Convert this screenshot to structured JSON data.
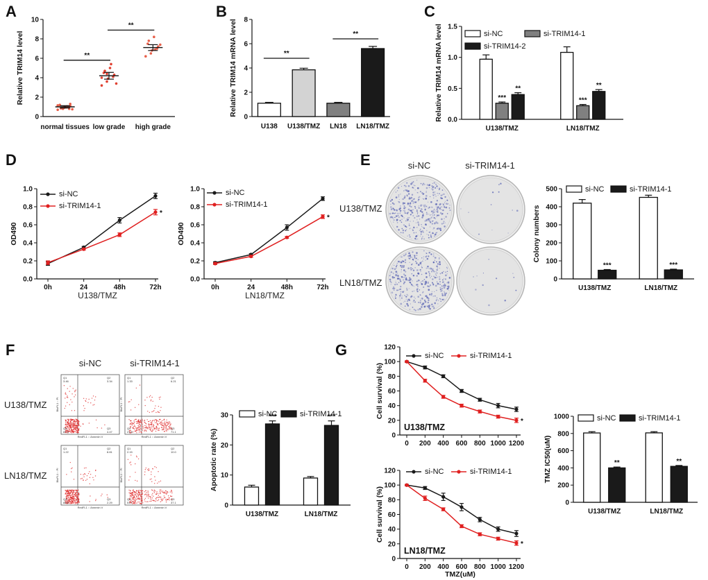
{
  "colors": {
    "black": "#1a1a1a",
    "red": "#e02020",
    "gray": "#808080",
    "lightgray": "#d3d3d3",
    "white": "#ffffff",
    "plateBlue": "#5a64b4",
    "dots": "#e8604a",
    "dotsLow": "#e04030"
  },
  "chart_data": [
    {
      "id": "A",
      "type": "scatter",
      "panel_label": "A",
      "ylabel": "Relative TRIM14 level",
      "ylim": [
        0,
        10
      ],
      "yticks": [
        0,
        2,
        4,
        6,
        8,
        10
      ],
      "categories": [
        "normal tissues",
        "low grade",
        "high grade"
      ],
      "points": [
        [
          0.7,
          0.8,
          0.9,
          1.0,
          1.1,
          1.2,
          0.85,
          0.95,
          1.05,
          0.75,
          1.15,
          0.9,
          1.0,
          0.8,
          1.3
        ],
        [
          3.2,
          3.6,
          3.9,
          4.1,
          4.3,
          4.5,
          4.7,
          5.0,
          5.4,
          3.4,
          4.0,
          4.4
        ],
        [
          6.2,
          6.5,
          6.8,
          7.0,
          7.2,
          7.5,
          7.8,
          8.2,
          6.9,
          7.4
        ]
      ],
      "means": [
        1.0,
        4.2,
        7.1
      ],
      "errors": [
        0.12,
        0.35,
        0.3
      ],
      "annotations": [
        {
          "from": 0,
          "to": 1,
          "y": 5.8,
          "text": "**"
        },
        {
          "from": 1,
          "to": 2,
          "y": 8.9,
          "text": "**"
        }
      ]
    },
    {
      "id": "B",
      "type": "bar",
      "panel_label": "B",
      "ylabel": "Relative TRIM14 mRNA level",
      "ylim": [
        0,
        8
      ],
      "yticks": [
        0,
        2,
        4,
        6,
        8
      ],
      "categories": [
        "U138",
        "U138/TMZ",
        "LN18",
        "LN18/TMZ"
      ],
      "values": [
        1.1,
        3.85,
        1.1,
        5.6
      ],
      "errors": [
        0.07,
        0.13,
        0.07,
        0.18
      ],
      "bar_colors": [
        "#ffffff",
        "#d3d3d3",
        "#808080",
        "#1a1a1a"
      ],
      "annotations": [
        {
          "from": 0,
          "to": 1,
          "y": 4.8,
          "text": "**"
        },
        {
          "from": 2,
          "to": 3,
          "y": 6.4,
          "text": "**"
        }
      ]
    },
    {
      "id": "C",
      "type": "bar",
      "panel_label": "C",
      "ylabel": "Relative TRIM14 mRNA level",
      "ylim": [
        0,
        1.5
      ],
      "yticks": [
        0.0,
        0.5,
        1.0,
        1.5
      ],
      "categories": [
        "U138/TMZ",
        "LN18/TMZ"
      ],
      "series": [
        {
          "name": "si-NC",
          "color": "#ffffff",
          "values": [
            0.97,
            1.08
          ],
          "errors": [
            0.07,
            0.09
          ],
          "labels": [
            "",
            ""
          ]
        },
        {
          "name": "si-TRIM14-1",
          "color": "#808080",
          "values": [
            0.26,
            0.22
          ],
          "errors": [
            0.02,
            0.02
          ],
          "labels": [
            "***",
            "***"
          ]
        },
        {
          "name": "si-TRIM14-2",
          "color": "#1a1a1a",
          "values": [
            0.4,
            0.45
          ],
          "errors": [
            0.03,
            0.03
          ],
          "labels": [
            "**",
            "**"
          ]
        }
      ]
    },
    {
      "id": "D1",
      "type": "line",
      "panel_label": "D",
      "ylabel": "OD490",
      "xlabel": "U138/TMZ",
      "ylim": [
        0,
        1.0
      ],
      "yticks": [
        0.0,
        0.2,
        0.4,
        0.6,
        0.8,
        1.0
      ],
      "categories": [
        "0h",
        "24",
        "48h",
        "72h"
      ],
      "series": [
        {
          "name": "si-NC",
          "color": "#1a1a1a",
          "values": [
            0.17,
            0.35,
            0.65,
            0.92
          ],
          "errors": [
            0.02,
            0.01,
            0.03,
            0.03
          ],
          "end_label": ""
        },
        {
          "name": "si-TRIM14-1",
          "color": "#e02020",
          "values": [
            0.18,
            0.33,
            0.49,
            0.74
          ],
          "errors": [
            0.02,
            0.01,
            0.02,
            0.03
          ],
          "end_label": "*"
        }
      ]
    },
    {
      "id": "D2",
      "type": "line",
      "panel_label": "",
      "ylabel": "OD490",
      "xlabel": "LN18/TMZ",
      "ylim": [
        0,
        1.0
      ],
      "yticks": [
        0.0,
        0.2,
        0.4,
        0.6,
        0.8,
        1.0
      ],
      "categories": [
        "0h",
        "24",
        "48h",
        "72h"
      ],
      "series": [
        {
          "name": "si-NC",
          "color": "#1a1a1a",
          "values": [
            0.18,
            0.27,
            0.57,
            0.89
          ],
          "errors": [
            0.01,
            0.01,
            0.03,
            0.02
          ],
          "end_label": ""
        },
        {
          "name": "si-TRIM14-1",
          "color": "#e02020",
          "values": [
            0.17,
            0.25,
            0.46,
            0.69
          ],
          "errors": [
            0.01,
            0.01,
            0.01,
            0.02
          ],
          "end_label": "*"
        }
      ]
    },
    {
      "id": "E",
      "type": "bar",
      "panel_label": "",
      "ylabel": "Colony numbers",
      "ylim": [
        0,
        500
      ],
      "yticks": [
        0,
        100,
        200,
        300,
        400,
        500
      ],
      "categories": [
        "U138/TMZ",
        "LN18/TMZ"
      ],
      "series": [
        {
          "name": "si-NC",
          "color": "#ffffff",
          "values": [
            420,
            452
          ],
          "errors": [
            20,
            12
          ],
          "labels": [
            "",
            ""
          ]
        },
        {
          "name": "si-TRIM14-1",
          "color": "#1a1a1a",
          "values": [
            48,
            50
          ],
          "errors": [
            4,
            4
          ],
          "labels": [
            "***",
            "***"
          ]
        }
      ]
    },
    {
      "id": "F",
      "type": "bar",
      "panel_label": "",
      "ylabel": "Apoptotic rate (%)",
      "ylim": [
        0,
        30
      ],
      "yticks": [
        0,
        10,
        20,
        30
      ],
      "categories": [
        "U138/TMZ",
        "LN18/TMZ"
      ],
      "series": [
        {
          "name": "si-NC",
          "color": "#ffffff",
          "values": [
            6,
            9
          ],
          "errors": [
            0.6,
            0.5
          ],
          "labels": [
            "",
            ""
          ]
        },
        {
          "name": "si-TRIM14-1",
          "color": "#1a1a1a",
          "values": [
            27,
            26.5
          ],
          "errors": [
            1.0,
            1.5
          ],
          "labels": [
            "***",
            "***"
          ]
        }
      ]
    },
    {
      "id": "G1",
      "type": "line",
      "panel_label": "G",
      "ylabel": "Cell survival (%)",
      "xlabel": "",
      "inner_label": "U138/TMZ",
      "ylim": [
        0,
        120
      ],
      "yticks": [
        0,
        20,
        40,
        60,
        80,
        100,
        120
      ],
      "x": [
        0,
        200,
        400,
        600,
        800,
        1000,
        1200
      ],
      "series": [
        {
          "name": "si-NC",
          "color": "#1a1a1a",
          "values": [
            100,
            92,
            80,
            60,
            48,
            40,
            35
          ],
          "errors": [
            1,
            2,
            2,
            2,
            2,
            3,
            3
          ],
          "end_label": ""
        },
        {
          "name": "si-TRIM14-1",
          "color": "#e02020",
          "values": [
            100,
            74,
            52,
            40,
            32,
            25,
            20
          ],
          "errors": [
            1,
            2,
            2,
            2,
            2,
            2,
            3
          ],
          "end_label": "*"
        }
      ]
    },
    {
      "id": "G2",
      "type": "line",
      "panel_label": "",
      "ylabel": "Cell survival (%)",
      "xlabel": "TMZ(uM)",
      "inner_label": "LN18/TMZ",
      "ylim": [
        0,
        120
      ],
      "yticks": [
        0,
        20,
        40,
        60,
        80,
        100,
        120
      ],
      "x": [
        0,
        200,
        400,
        600,
        800,
        1000,
        1200
      ],
      "series": [
        {
          "name": "si-NC",
          "color": "#1a1a1a",
          "values": [
            100,
            96,
            84,
            70,
            53,
            40,
            34
          ],
          "errors": [
            1,
            2,
            5,
            5,
            3,
            3,
            4
          ],
          "end_label": ""
        },
        {
          "name": "si-TRIM14-1",
          "color": "#e02020",
          "values": [
            100,
            82,
            67,
            44,
            33,
            27,
            21
          ],
          "errors": [
            1,
            3,
            2,
            2,
            2,
            2,
            3
          ],
          "end_label": "*"
        }
      ]
    },
    {
      "id": "G3",
      "type": "bar",
      "panel_label": "",
      "ylabel": "TMZ IC50(uM)",
      "ylim": [
        0,
        1000
      ],
      "yticks": [
        0,
        200,
        400,
        600,
        800,
        1000
      ],
      "categories": [
        "U138/TMZ",
        "LN18/TMZ"
      ],
      "series": [
        {
          "name": "si-NC",
          "color": "#ffffff",
          "values": [
            806,
            807
          ],
          "errors": [
            15,
            14
          ],
          "labels": [
            "",
            ""
          ]
        },
        {
          "name": "si-TRIM14-1",
          "color": "#1a1a1a",
          "values": [
            400,
            418
          ],
          "errors": [
            10,
            10
          ],
          "labels": [
            "**",
            "**"
          ]
        }
      ]
    }
  ],
  "panel_e": {
    "label": "E",
    "col_labels": [
      "si-NC",
      "si-TRIM14-1"
    ],
    "row_labels": [
      "U138/TMZ",
      "LN18/TMZ"
    ]
  },
  "panel_f": {
    "label": "F",
    "col_labels": [
      "si-NC",
      "si-TRIM14-1"
    ],
    "row_labels": [
      "U138/TMZ",
      "LN18/TMZ"
    ],
    "quadrants": [
      [
        "3.46",
        "3.34",
        "87.3",
        "4.47"
      ],
      [
        "1.33",
        "6.21",
        "21.8",
        "71.1"
      ],
      [
        "1.22",
        "8.81",
        "89.6",
        "2.29"
      ],
      [
        "2.15",
        "10.0",
        "51.7",
        "37.1"
      ]
    ],
    "quadrant_names": [
      "Q1",
      "Q2",
      "Q4",
      "Q3"
    ],
    "x_axis": "RedFL1 :: Annexin V",
    "y_axis": "BluFL1 :: PI"
  }
}
